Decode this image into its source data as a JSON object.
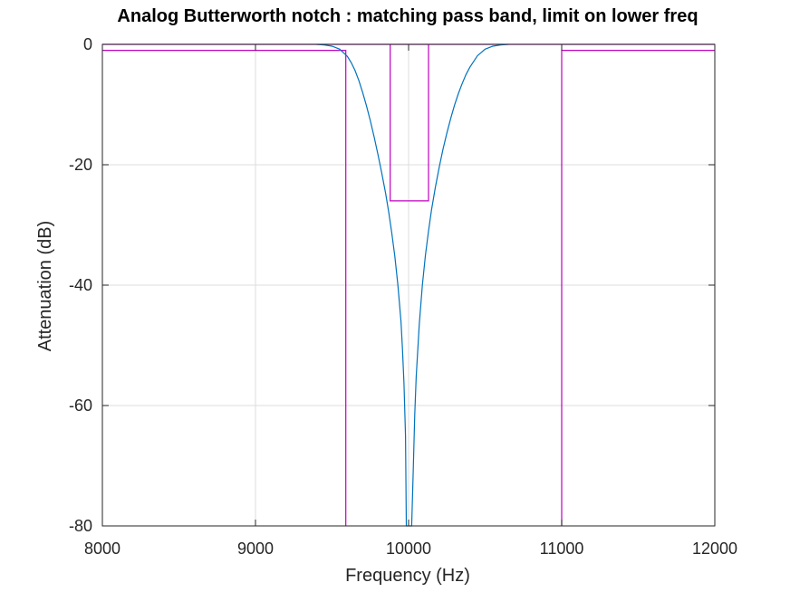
{
  "chart_data": {
    "type": "line",
    "title": "Analog Butterworth notch : matching pass band, limit on lower freq",
    "xlabel": "Frequency (Hz)",
    "ylabel": "Attenuation (dB)",
    "xlim": [
      8000,
      12000
    ],
    "ylim": [
      -80,
      0
    ],
    "xticks": [
      8000,
      9000,
      10000,
      11000,
      12000
    ],
    "yticks": [
      0,
      -20,
      -40,
      -60,
      -80
    ],
    "xtick_labels": [
      "8000",
      "9000",
      "10000",
      "11000",
      "12000"
    ],
    "ytick_labels": [
      "0",
      "-20",
      "-40",
      "-60",
      "-80"
    ],
    "grid": true,
    "series": [
      {
        "role": "response",
        "color": "#0072bd",
        "x": [
          9400,
          9450,
          9500,
          9550,
          9600,
          9625,
          9650,
          9675,
          9700,
          9725,
          9750,
          9775,
          9800,
          9825,
          9850,
          9870,
          9890,
          9910,
          9930,
          9950,
          9960,
          9970,
          9980,
          9985,
          10020,
          10030,
          10040,
          10050,
          10070,
          10090,
          10110,
          10130,
          10150,
          10175,
          10200,
          10225,
          10250,
          10275,
          10300,
          10325,
          10350,
          10375,
          10400,
          10450,
          10500,
          10550,
          10600,
          10650
        ],
        "y": [
          0,
          -0.1,
          -0.3,
          -0.8,
          -2.0,
          -3.0,
          -4.3,
          -6.0,
          -8.0,
          -10.2,
          -12.7,
          -15.4,
          -18.3,
          -21.4,
          -24.8,
          -27.8,
          -31.3,
          -35.2,
          -40.0,
          -46.0,
          -50.5,
          -56.3,
          -65.0,
          -80.0,
          -80.0,
          -71.0,
          -61.5,
          -55.2,
          -46.5,
          -40.0,
          -35.0,
          -31.0,
          -27.5,
          -23.7,
          -20.4,
          -17.4,
          -14.7,
          -12.3,
          -10.1,
          -8.2,
          -6.5,
          -5.0,
          -3.8,
          -1.9,
          -0.8,
          -0.3,
          -0.1,
          0
        ]
      }
    ],
    "limits": [
      {
        "role": "passband-limit-low",
        "color": "#bf00bf",
        "x": [
          8000,
          9590,
          9590
        ],
        "y": [
          -1,
          -1,
          -80
        ]
      },
      {
        "role": "passband-limit-high",
        "color": "#bf00bf",
        "x": [
          11000,
          11000,
          12000
        ],
        "y": [
          -80,
          -1,
          -1
        ]
      },
      {
        "role": "passband-top",
        "color": "#bf00bf",
        "x": [
          8000,
          12000
        ],
        "y": [
          0,
          0
        ]
      },
      {
        "role": "stopband-limit",
        "color": "#bf00bf",
        "x": [
          9880,
          9880,
          10130,
          10130
        ],
        "y": [
          0,
          -26,
          -26,
          0
        ]
      }
    ]
  }
}
